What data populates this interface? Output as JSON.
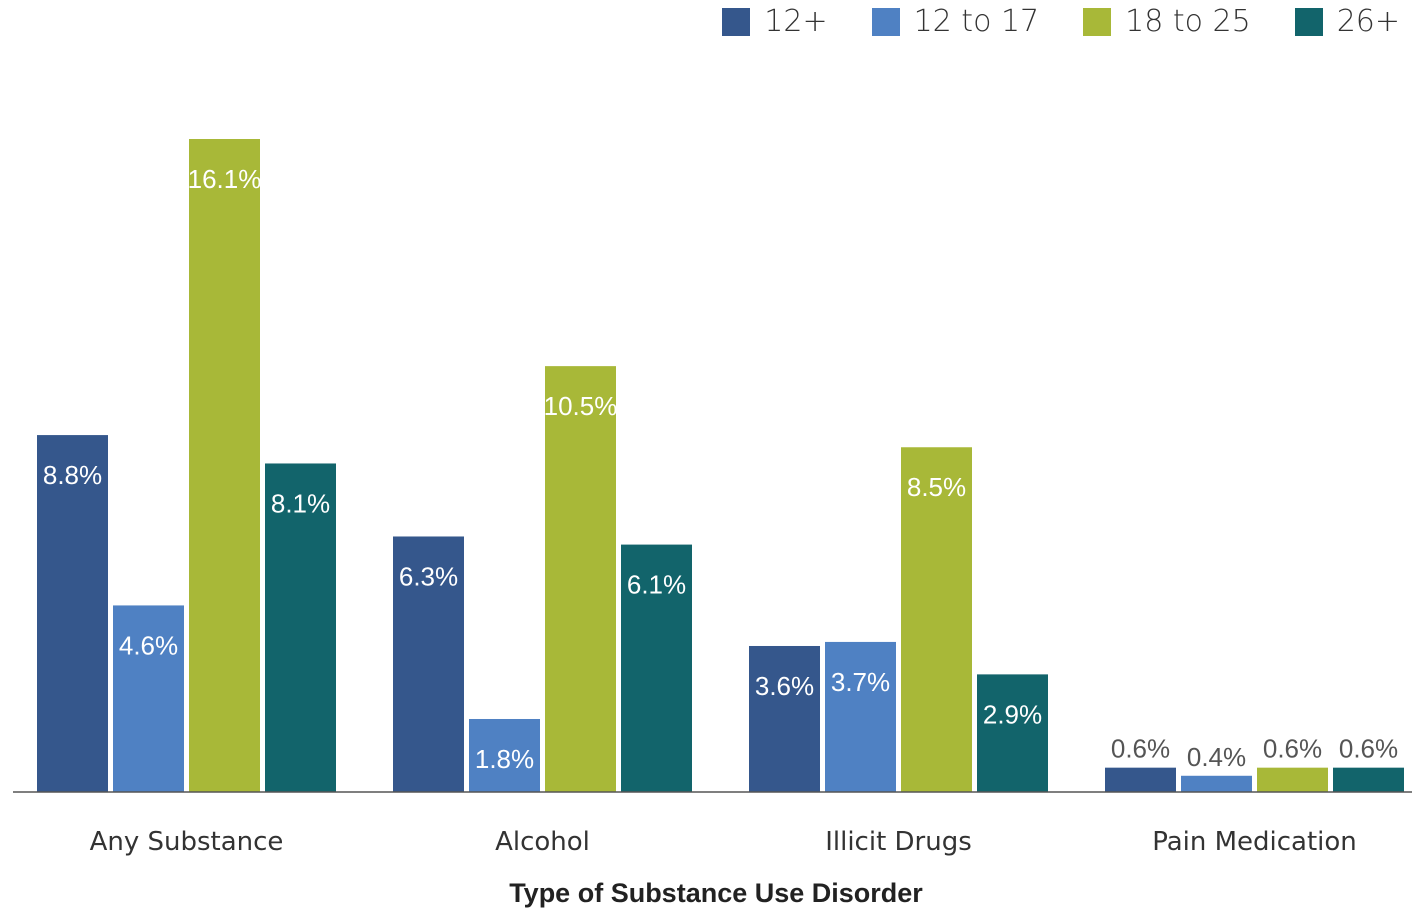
{
  "chart_data": {
    "type": "bar",
    "xlabel": "Type of Substance Use Disorder",
    "ylabel": "",
    "categories": [
      "Any Substance",
      "Alcohol",
      "Illicit Drugs",
      "Pain Medication"
    ],
    "series": [
      {
        "name": "12+",
        "color": "#35578c",
        "values": [
          8.8,
          6.3,
          3.6,
          0.6
        ],
        "labels": [
          "8.8%",
          "6.3%",
          "3.6%",
          "0.6%"
        ]
      },
      {
        "name": "12 to 17",
        "color": "#4f81c3",
        "values": [
          4.6,
          1.8,
          3.7,
          0.4
        ],
        "labels": [
          "4.6%",
          "1.8%",
          "3.7%",
          "0.4%"
        ]
      },
      {
        "name": "18 to 25",
        "color": "#a8b838",
        "values": [
          16.1,
          10.5,
          8.5,
          0.6
        ],
        "labels": [
          "16.1%",
          "10.5%",
          "8.5%",
          "0.6%"
        ]
      },
      {
        "name": "26+",
        "color": "#12646b",
        "values": [
          8.1,
          6.1,
          2.9,
          0.6
        ],
        "labels": [
          "8.1%",
          "6.1%",
          "2.9%",
          "0.6%"
        ]
      }
    ],
    "ylim": [
      0,
      16.1
    ],
    "grid": false,
    "legend_position": "top-right"
  }
}
